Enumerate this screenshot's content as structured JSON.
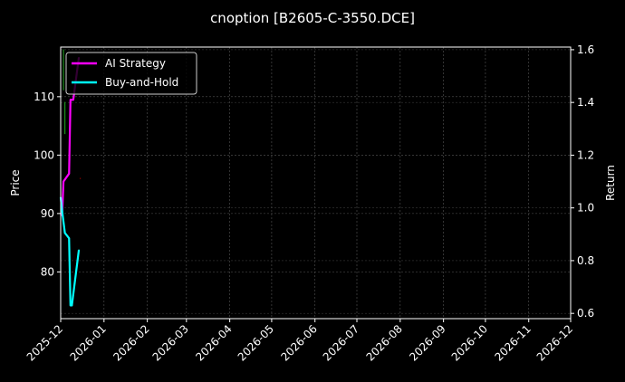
{
  "chart_data": {
    "type": "line",
    "title": "cnoption [B2605-C-3550.DCE]",
    "ylabel": "Price",
    "y2label": "Return",
    "ylim": [
      72,
      118.5
    ],
    "y2lim": [
      0.58,
      1.61
    ],
    "xlim": [
      "2025-12-01",
      "2026-12-01"
    ],
    "x_ticks": [
      "2025-12",
      "2026-01",
      "2026-02",
      "2026-03",
      "2026-04",
      "2026-05",
      "2026-06",
      "2026-07",
      "2026-08",
      "2026-09",
      "2026-10",
      "2026-11",
      "2026-12"
    ],
    "y_ticks": [
      80,
      90,
      100,
      110
    ],
    "y2_ticks": [
      "0.6",
      "0.8",
      "1.0",
      "1.2",
      "1.4",
      "1.6"
    ],
    "grid": true,
    "legend_position": "top-left",
    "series": [
      {
        "name": "AI Strategy",
        "axis": "right",
        "color": "#ff00ff",
        "x": [
          "2025-12-02",
          "2025-12-03",
          "2025-12-07",
          "2025-12-08",
          "2025-12-10",
          "2025-12-14"
        ],
        "values": [
          0.97,
          1.1,
          1.13,
          1.41,
          1.41,
          1.57
        ]
      },
      {
        "name": "Buy-and-Hold",
        "axis": "right",
        "color": "#00ffff",
        "x": [
          "2025-12-01",
          "2025-12-02",
          "2025-12-04",
          "2025-12-07",
          "2025-12-08",
          "2025-12-09",
          "2025-12-14"
        ],
        "values": [
          1.04,
          0.99,
          0.905,
          0.885,
          0.63,
          0.63,
          0.84
        ]
      }
    ],
    "price_marks": [
      {
        "x": "2025-12-03",
        "high": 118.1,
        "low": 111.1,
        "color": "#1f8f1f"
      },
      {
        "x": "2025-12-04",
        "high": 109.1,
        "low": 103.6,
        "color": "#1f8f1f"
      },
      {
        "x": "2025-12-15",
        "high": 96.1,
        "low": 95.9,
        "color": "#8b0000"
      }
    ]
  }
}
